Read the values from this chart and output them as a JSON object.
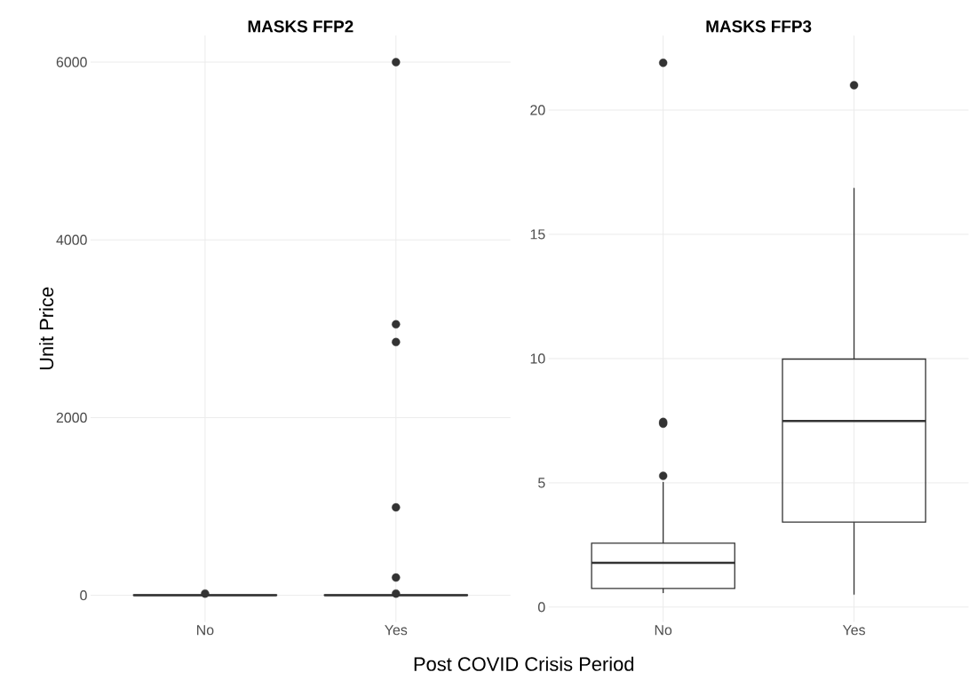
{
  "chart_data": [
    {
      "type": "box",
      "title": "MASKS FFP2",
      "xlabel": "Post COVID Crisis Period",
      "ylabel": "Unit Price",
      "categories": [
        "No",
        "Yes"
      ],
      "ylim": [
        -300,
        6300
      ],
      "yticks": [
        0,
        2000,
        4000,
        6000
      ],
      "grid": true,
      "series": [
        {
          "color": "#333333",
          "boxes": [
            {
              "low": 0,
              "q1": 1,
              "median": 2,
              "q3": 5,
              "high": 10,
              "outliers": [
                20
              ]
            },
            {
              "low": 0,
              "q1": 1,
              "median": 2,
              "q3": 5,
              "high": 10,
              "outliers": [
                20,
                200,
                990,
                2850,
                3050,
                6000
              ]
            }
          ]
        }
      ]
    },
    {
      "type": "box",
      "title": "MASKS FFP3",
      "categories": [
        "No",
        "Yes"
      ],
      "ylim": [
        -0.6,
        23.0
      ],
      "yticks": [
        0,
        5,
        10,
        15,
        20
      ],
      "grid": true,
      "series": [
        {
          "color": "#333333",
          "boxes": [
            {
              "low": 0.57,
              "q1": 0.75,
              "median": 1.78,
              "q3": 2.57,
              "high": 5.03,
              "outliers": [
                5.28,
                7.38,
                7.45,
                21.9
              ]
            },
            {
              "low": 0.5,
              "q1": 3.42,
              "median": 7.49,
              "q3": 9.98,
              "high": 16.86,
              "outliers": [
                21.0
              ]
            }
          ]
        }
      ]
    }
  ]
}
